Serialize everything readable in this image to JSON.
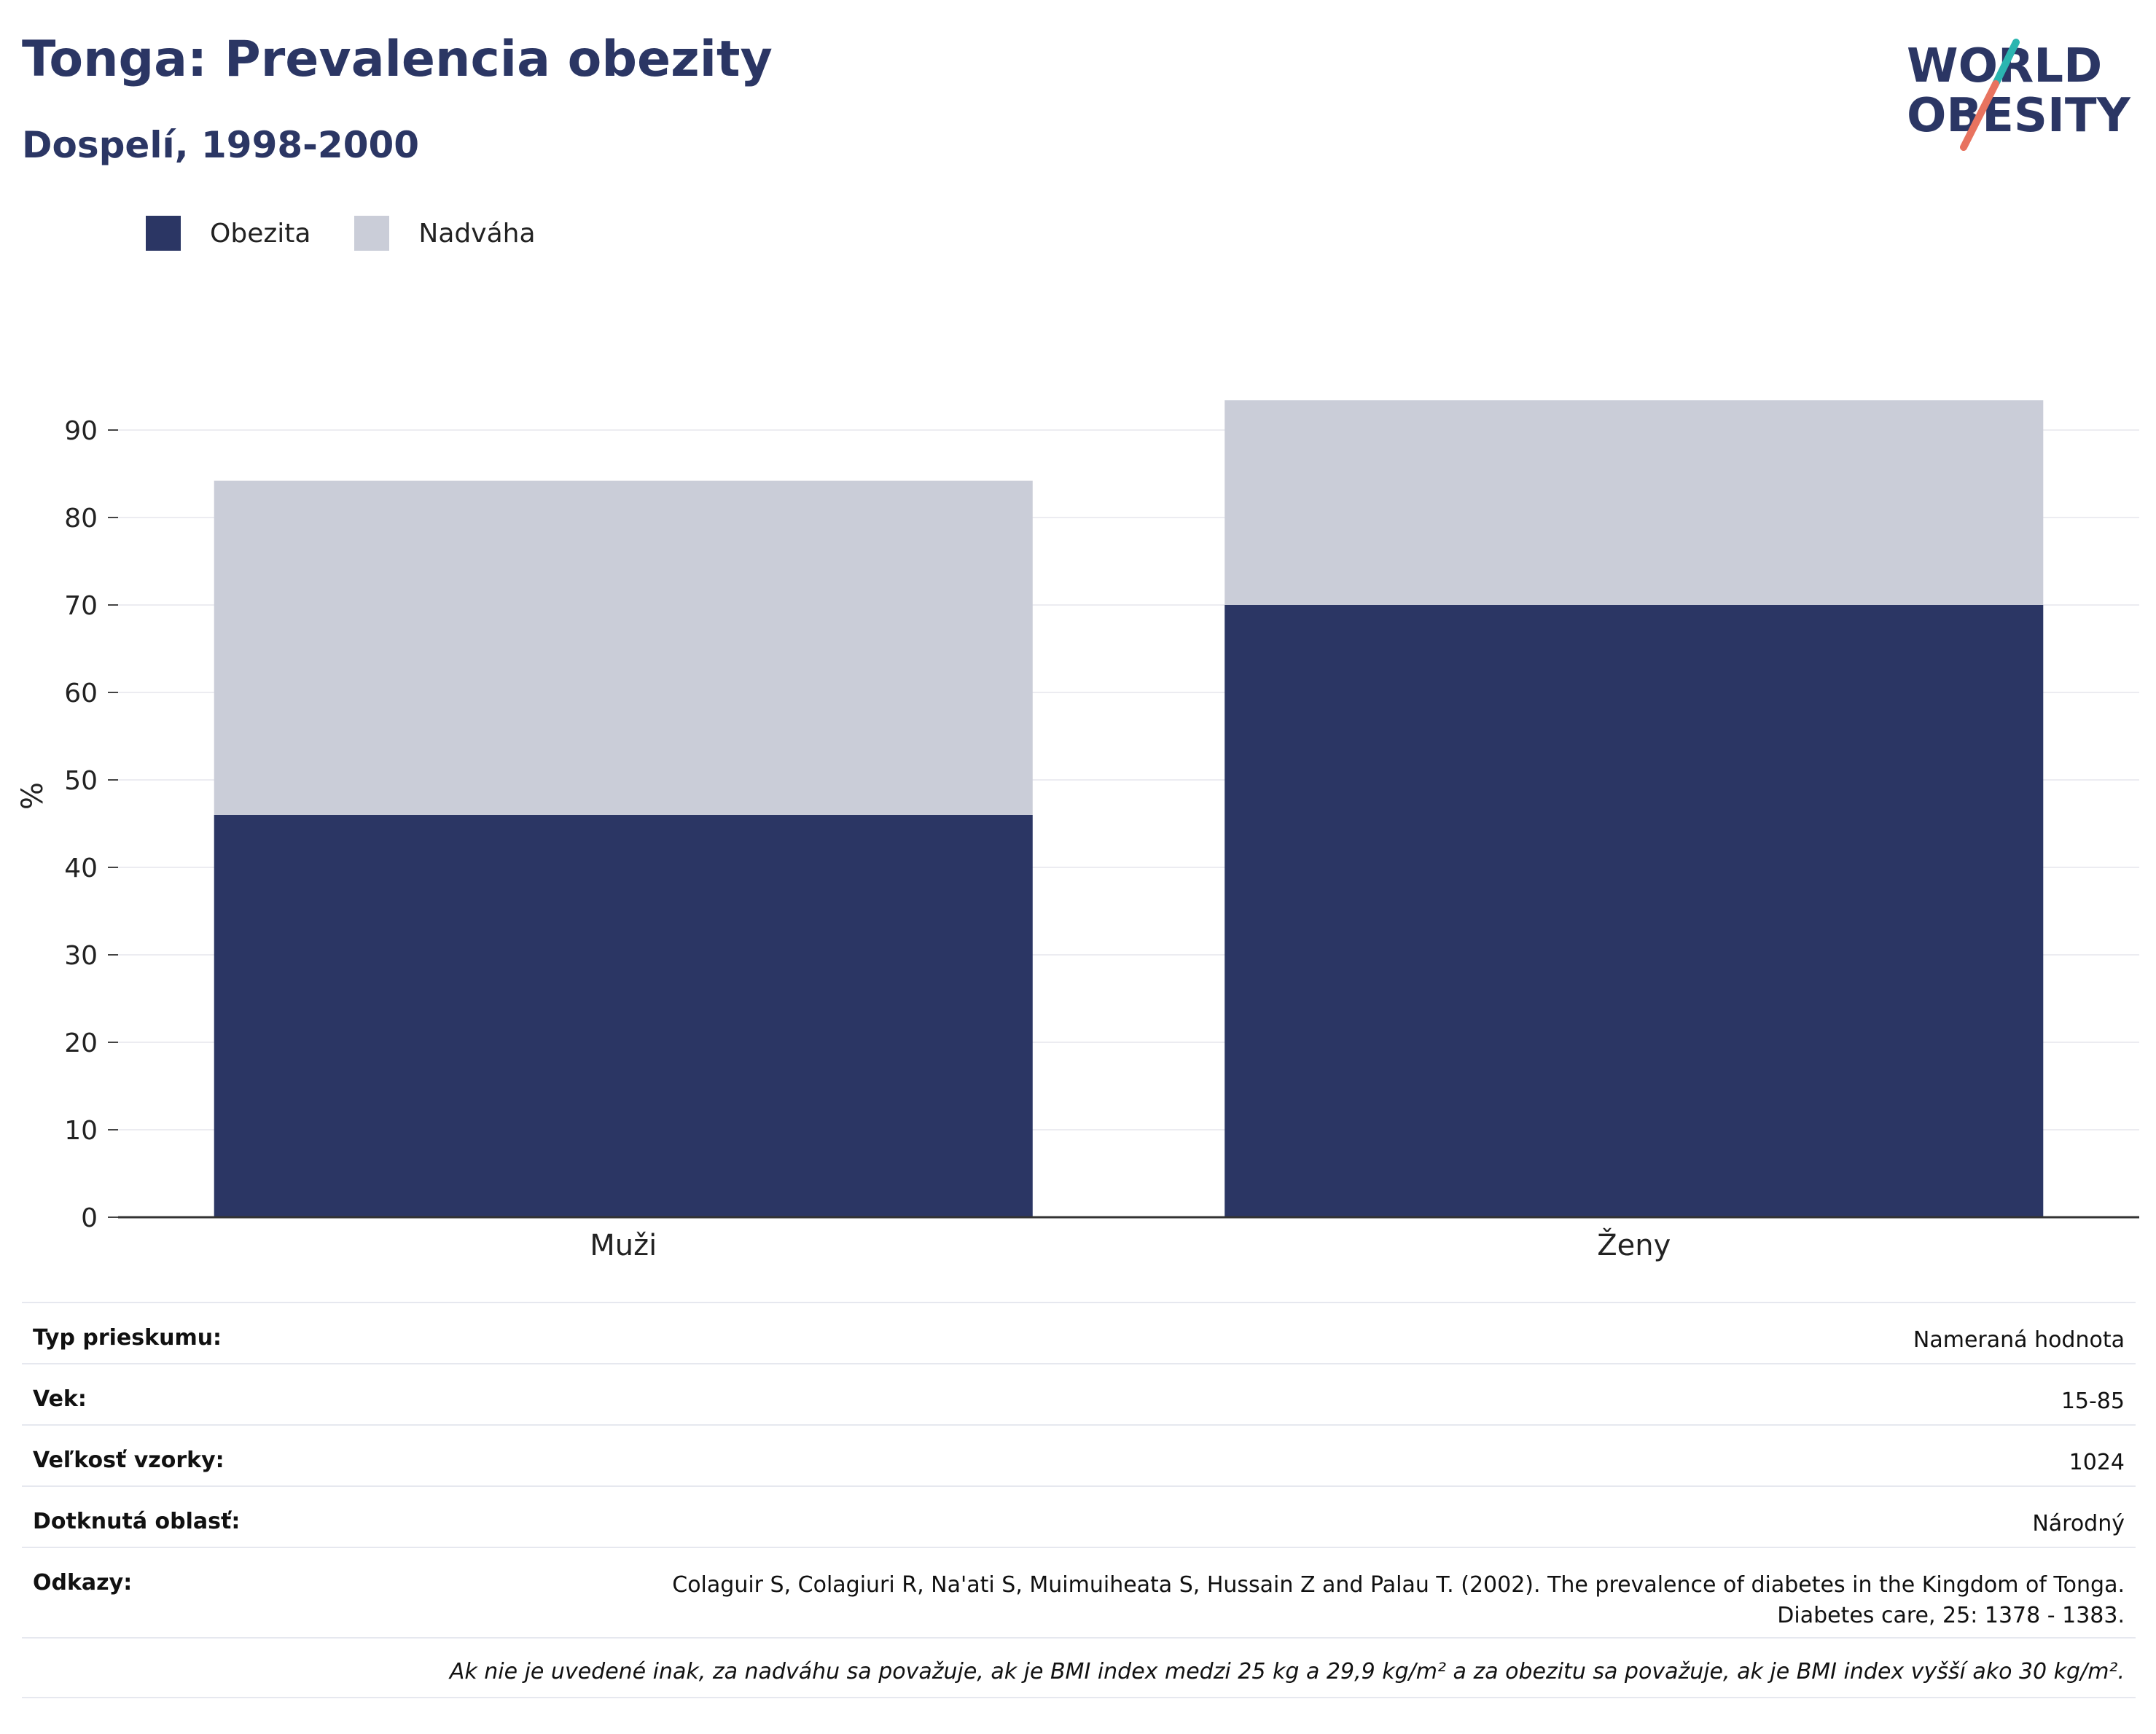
{
  "header": {
    "title": "Tonga: Prevalencia obezity",
    "subtitle": "Dospelí, 1998-2000"
  },
  "logo": {
    "line1": "WORLD",
    "line2": "OBESITY",
    "colors": {
      "text": "#2b3664",
      "teal": "#2bb5b0",
      "coral": "#e8735f"
    }
  },
  "legend": [
    {
      "label": "Obezita",
      "color": "#2b3664"
    },
    {
      "label": "Nadváha",
      "color": "#cacdd8"
    }
  ],
  "chart_data": {
    "type": "bar",
    "stacked": true,
    "categories": [
      "Muži",
      "Ženy"
    ],
    "series": [
      {
        "name": "Obezita",
        "color": "#2b3664",
        "values": [
          46.0,
          70.0
        ]
      },
      {
        "name": "Nadváha",
        "color": "#cacdd8",
        "values": [
          38.2,
          23.4
        ]
      }
    ],
    "ylabel": "%",
    "xlabel": "",
    "ylim": [
      0,
      95
    ],
    "yticks": [
      0,
      10,
      20,
      30,
      40,
      50,
      60,
      70,
      80,
      90
    ],
    "grid": true,
    "legend_position": "top-left"
  },
  "meta": {
    "rows": [
      {
        "label": "Typ prieskumu:",
        "value": "Nameraná hodnota"
      },
      {
        "label": "Vek:",
        "value": "15-85"
      },
      {
        "label": "Veľkosť vzorky:",
        "value": "1024"
      },
      {
        "label": "Dotknutá oblasť:",
        "value": "Národný"
      }
    ],
    "references": {
      "label": "Odkazy:",
      "line1": "Colaguir S, Colagiuri R, Na'ati S, Muimuiheata S, Hussain Z and Palau T. (2002). The prevalence of diabetes in the Kingdom of Tonga.",
      "line2": "Diabetes care, 25: 1378 - 1383."
    },
    "note": "Ak nie je uvedené inak, za nadváhu sa považuje, ak je BMI index medzi 25 kg a 29,9 kg/m² a za obezitu sa považuje, ak je BMI index vyšší ako 30 kg/m²."
  }
}
